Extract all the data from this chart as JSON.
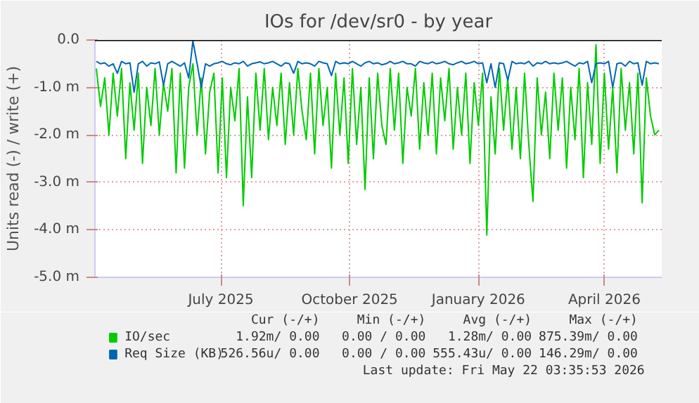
{
  "chart_data": {
    "type": "line",
    "title": "IOs for /dev/sr0 - by year",
    "ylabel": "Units read (-) / write (+)",
    "x": [
      "2025-04-03",
      "2025-04-06",
      "2025-04-09",
      "2025-04-12",
      "2025-04-15",
      "2025-04-18",
      "2025-04-21",
      "2025-04-24",
      "2025-04-27",
      "2025-04-30",
      "2025-05-03",
      "2025-05-06",
      "2025-05-09",
      "2025-05-12",
      "2025-05-15",
      "2025-05-18",
      "2025-05-21",
      "2025-05-24",
      "2025-05-27",
      "2025-05-30",
      "2025-06-02",
      "2025-06-05",
      "2025-06-08",
      "2025-06-11",
      "2025-06-14",
      "2025-06-17",
      "2025-06-20",
      "2025-06-23",
      "2025-06-26",
      "2025-06-29",
      "2025-07-02",
      "2025-07-05",
      "2025-07-08",
      "2025-07-11",
      "2025-07-14",
      "2025-07-17",
      "2025-07-20",
      "2025-07-23",
      "2025-07-26",
      "2025-07-29",
      "2025-08-01",
      "2025-08-04",
      "2025-08-07",
      "2025-08-10",
      "2025-08-13",
      "2025-08-16",
      "2025-08-19",
      "2025-08-22",
      "2025-08-25",
      "2025-08-28",
      "2025-08-31",
      "2025-09-03",
      "2025-09-06",
      "2025-09-09",
      "2025-09-12",
      "2025-09-15",
      "2025-09-18",
      "2025-09-21",
      "2025-09-24",
      "2025-09-27",
      "2025-09-30",
      "2025-10-03",
      "2025-10-06",
      "2025-10-09",
      "2025-10-12",
      "2025-10-15",
      "2025-10-18",
      "2025-10-21",
      "2025-10-24",
      "2025-10-27",
      "2025-10-30",
      "2025-11-02",
      "2025-11-05",
      "2025-11-08",
      "2025-11-11",
      "2025-11-14",
      "2025-11-17",
      "2025-11-20",
      "2025-11-23",
      "2025-11-26",
      "2025-11-29",
      "2025-12-02",
      "2025-12-05",
      "2025-12-08",
      "2025-12-11",
      "2025-12-14",
      "2025-12-17",
      "2025-12-20",
      "2025-12-23",
      "2025-12-26",
      "2025-12-29",
      "2026-01-01",
      "2026-01-04",
      "2026-01-07",
      "2026-01-10",
      "2026-01-13",
      "2026-01-16",
      "2026-01-19",
      "2026-01-22",
      "2026-01-25",
      "2026-01-28",
      "2026-01-31",
      "2026-02-03",
      "2026-02-06",
      "2026-02-09",
      "2026-02-12",
      "2026-02-15",
      "2026-02-18",
      "2026-02-21",
      "2026-02-24",
      "2026-02-27",
      "2026-03-02",
      "2026-03-05",
      "2026-03-08",
      "2026-03-11",
      "2026-03-14",
      "2026-03-17",
      "2026-03-20",
      "2026-03-23",
      "2026-03-26",
      "2026-03-29",
      "2026-04-01",
      "2026-04-04",
      "2026-04-07",
      "2026-04-10",
      "2026-04-13",
      "2026-04-16",
      "2026-04-19",
      "2026-04-22",
      "2026-04-25",
      "2026-04-28",
      "2026-05-01",
      "2026-05-04",
      "2026-05-07",
      "2026-05-10"
    ],
    "series": [
      {
        "name": "IO/sec",
        "color": "#00cc00",
        "values": [
          -0.6,
          -1.4,
          -0.8,
          -2.0,
          -0.7,
          -1.6,
          -0.6,
          -2.5,
          -0.9,
          -1.9,
          -0.7,
          -2.6,
          -1.0,
          -1.8,
          -0.6,
          -2.0,
          -0.9,
          -1.5,
          -0.6,
          -2.8,
          -0.7,
          -2.7,
          -1.0,
          -0.5,
          -2.0,
          -0.8,
          -2.4,
          -1.1,
          -0.7,
          -2.8,
          -0.8,
          -2.9,
          -1.0,
          -1.7,
          -0.6,
          -3.49,
          -1.2,
          -2.9,
          -0.7,
          -1.9,
          -0.6,
          -2.1,
          -1.0,
          -1.8,
          -0.7,
          -2.2,
          -0.9,
          -2.0,
          -0.6,
          -1.5,
          -2.1,
          -0.7,
          -2.4,
          -0.6,
          -1.8,
          -1.0,
          -2.7,
          -0.7,
          -2.0,
          -0.8,
          -2.6,
          -0.6,
          -2.2,
          -1.0,
          -3.15,
          -0.8,
          -2.5,
          -0.7,
          -1.8,
          -2.2,
          -0.6,
          -1.9,
          -0.7,
          -2.6,
          -1.0,
          -1.6,
          -0.6,
          -2.3,
          -0.9,
          -2.0,
          -0.7,
          -2.4,
          -0.8,
          -1.7,
          -0.6,
          -2.3,
          -1.0,
          -2.0,
          -0.7,
          -2.6,
          -0.9,
          -1.8,
          -0.7,
          -4.11,
          -1.2,
          -2.4,
          -0.6,
          -1.9,
          -0.8,
          -2.3,
          -1.0,
          -2.5,
          -0.7,
          -2.2,
          -3.4,
          -0.8,
          -2.0,
          -1.1,
          -2.5,
          -0.7,
          -1.9,
          -0.8,
          -2.7,
          -1.0,
          -2.1,
          -0.6,
          -2.9,
          -0.9,
          -2.2,
          -0.1,
          -2.6,
          -0.7,
          -2.3,
          -1.0,
          -2.8,
          -0.6,
          -1.9,
          -0.9,
          -2.4,
          -0.7,
          -3.43,
          -0.8,
          -1.6,
          -2.0,
          -1.9
        ]
      },
      {
        "name": "Req Size (KB)",
        "color": "#0066b3",
        "values": [
          -0.45,
          -0.5,
          -0.48,
          -0.55,
          -0.5,
          -0.7,
          -0.45,
          -0.5,
          -0.48,
          -1.1,
          -0.5,
          -0.45,
          -0.55,
          -0.48,
          -0.5,
          -0.46,
          -0.95,
          -0.5,
          -0.45,
          -0.5,
          -0.55,
          -0.48,
          -0.8,
          -0.02,
          -0.5,
          -1.0,
          -0.5,
          -0.55,
          -0.5,
          -0.48,
          -0.45,
          -0.5,
          -0.52,
          -0.48,
          -0.5,
          -0.45,
          -0.55,
          -0.5,
          -0.48,
          -0.46,
          -0.5,
          -0.48,
          -0.45,
          -0.5,
          -0.55,
          -0.48,
          -0.5,
          -0.7,
          -0.45,
          -0.5,
          -0.48,
          -0.5,
          -0.55,
          -0.45,
          -0.48,
          -0.5,
          -0.75,
          -0.45,
          -0.5,
          -0.48,
          -0.5,
          -0.45,
          -0.5,
          -0.55,
          -0.48,
          -0.45,
          -0.5,
          -0.48,
          -0.52,
          -0.5,
          -0.45,
          -0.5,
          -0.48,
          -0.45,
          -0.5,
          -0.5,
          -0.55,
          -0.45,
          -0.48,
          -0.5,
          -0.46,
          -0.5,
          -0.48,
          -0.45,
          -0.5,
          -0.52,
          -0.48,
          -0.45,
          -0.5,
          -0.48,
          -0.45,
          -0.5,
          -0.48,
          -0.9,
          -0.5,
          -1.0,
          -0.48,
          -0.5,
          -0.85,
          -0.45,
          -0.5,
          -0.48,
          -0.5,
          -0.45,
          -0.55,
          -0.48,
          -0.5,
          -0.45,
          -0.5,
          -0.48,
          -0.5,
          -0.48,
          -0.45,
          -0.5,
          -0.55,
          -0.48,
          -0.5,
          -0.45,
          -0.9,
          -0.5,
          -0.48,
          -0.5,
          -0.45,
          -1.0,
          -0.5,
          -0.48,
          -0.55,
          -0.45,
          -0.5,
          -0.48,
          -0.95,
          -0.45,
          -0.5,
          -0.48,
          -0.5
        ]
      }
    ],
    "xlim": [
      "2025-04-02",
      "2026-05-12"
    ],
    "xticks": [
      {
        "value": "2025-07-01",
        "label": "July 2025"
      },
      {
        "value": "2025-10-01",
        "label": "October 2025"
      },
      {
        "value": "2026-01-01",
        "label": "January 2026"
      },
      {
        "value": "2026-04-01",
        "label": "April 2026"
      }
    ],
    "ylim": [
      -5.0,
      0.0
    ],
    "yticks": [
      {
        "value": -5.0,
        "label": "-5.0 m"
      },
      {
        "value": -4.0,
        "label": "-4.0 m"
      },
      {
        "value": -3.0,
        "label": "-3.0 m"
      },
      {
        "value": -2.0,
        "label": "-2.0 m"
      },
      {
        "value": -1.0,
        "label": "-1.0 m"
      },
      {
        "value": 0.0,
        "label": "0.0"
      }
    ],
    "ref_lines": [
      {
        "axis": "y",
        "value": 0.0,
        "color": "#000000"
      }
    ],
    "grid": true,
    "legend": "bottom",
    "annotations": [
      "Cur (-/+)",
      "Min (-/+)",
      "Avg (-/+)",
      "Max (-/+)",
      "1.92m/ 0.00",
      "0.00 / 0.00",
      "1.28m/ 0.00",
      "875.39m/ 0.00",
      "526.56u/ 0.00",
      "0.00 / 0.00",
      "555.43u/ 0.00",
      "146.29m/ 0.00",
      "Last update: Fri May 22 03:35:53 2026"
    ]
  }
}
